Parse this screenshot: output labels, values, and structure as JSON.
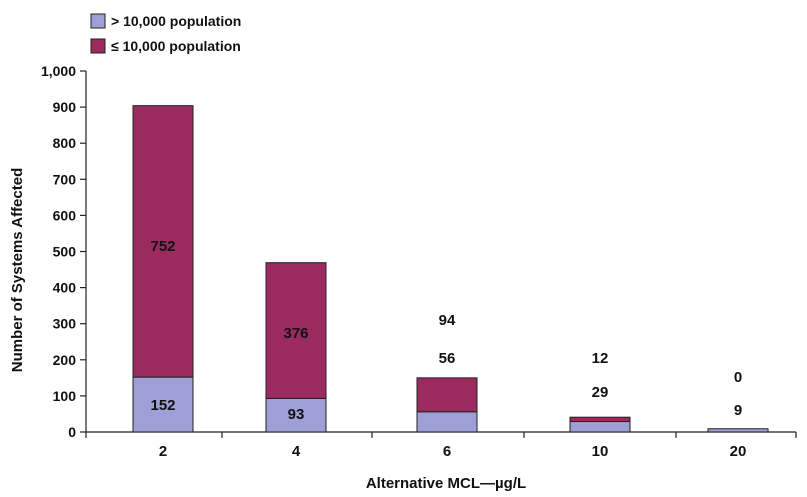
{
  "chart_data": {
    "type": "bar",
    "stacked": true,
    "title": "",
    "xlabel": "Alternative MCL—µg/L",
    "ylabel": "Number of Systems Affected",
    "ylim": [
      0,
      1000
    ],
    "yticks": [
      "0",
      "100",
      "200",
      "300",
      "400",
      "500",
      "600",
      "700",
      "800",
      "900",
      "1,000"
    ],
    "categories": [
      "2",
      "4",
      "6",
      "10",
      "20"
    ],
    "series": [
      {
        "name": "> 10,000 population",
        "color": "#9e9fd6",
        "values": [
          152,
          93,
          56,
          29,
          9
        ]
      },
      {
        "name": "≤ 10,000 population",
        "color": "#9b2a5e",
        "values": [
          752,
          376,
          94,
          12,
          0
        ]
      }
    ],
    "data_labels": {
      "lower": [
        "152",
        "93",
        "56",
        "29",
        "9"
      ],
      "upper": [
        "752",
        "376",
        "94",
        "12",
        "0"
      ]
    },
    "legend": "top-left",
    "grid": false
  }
}
